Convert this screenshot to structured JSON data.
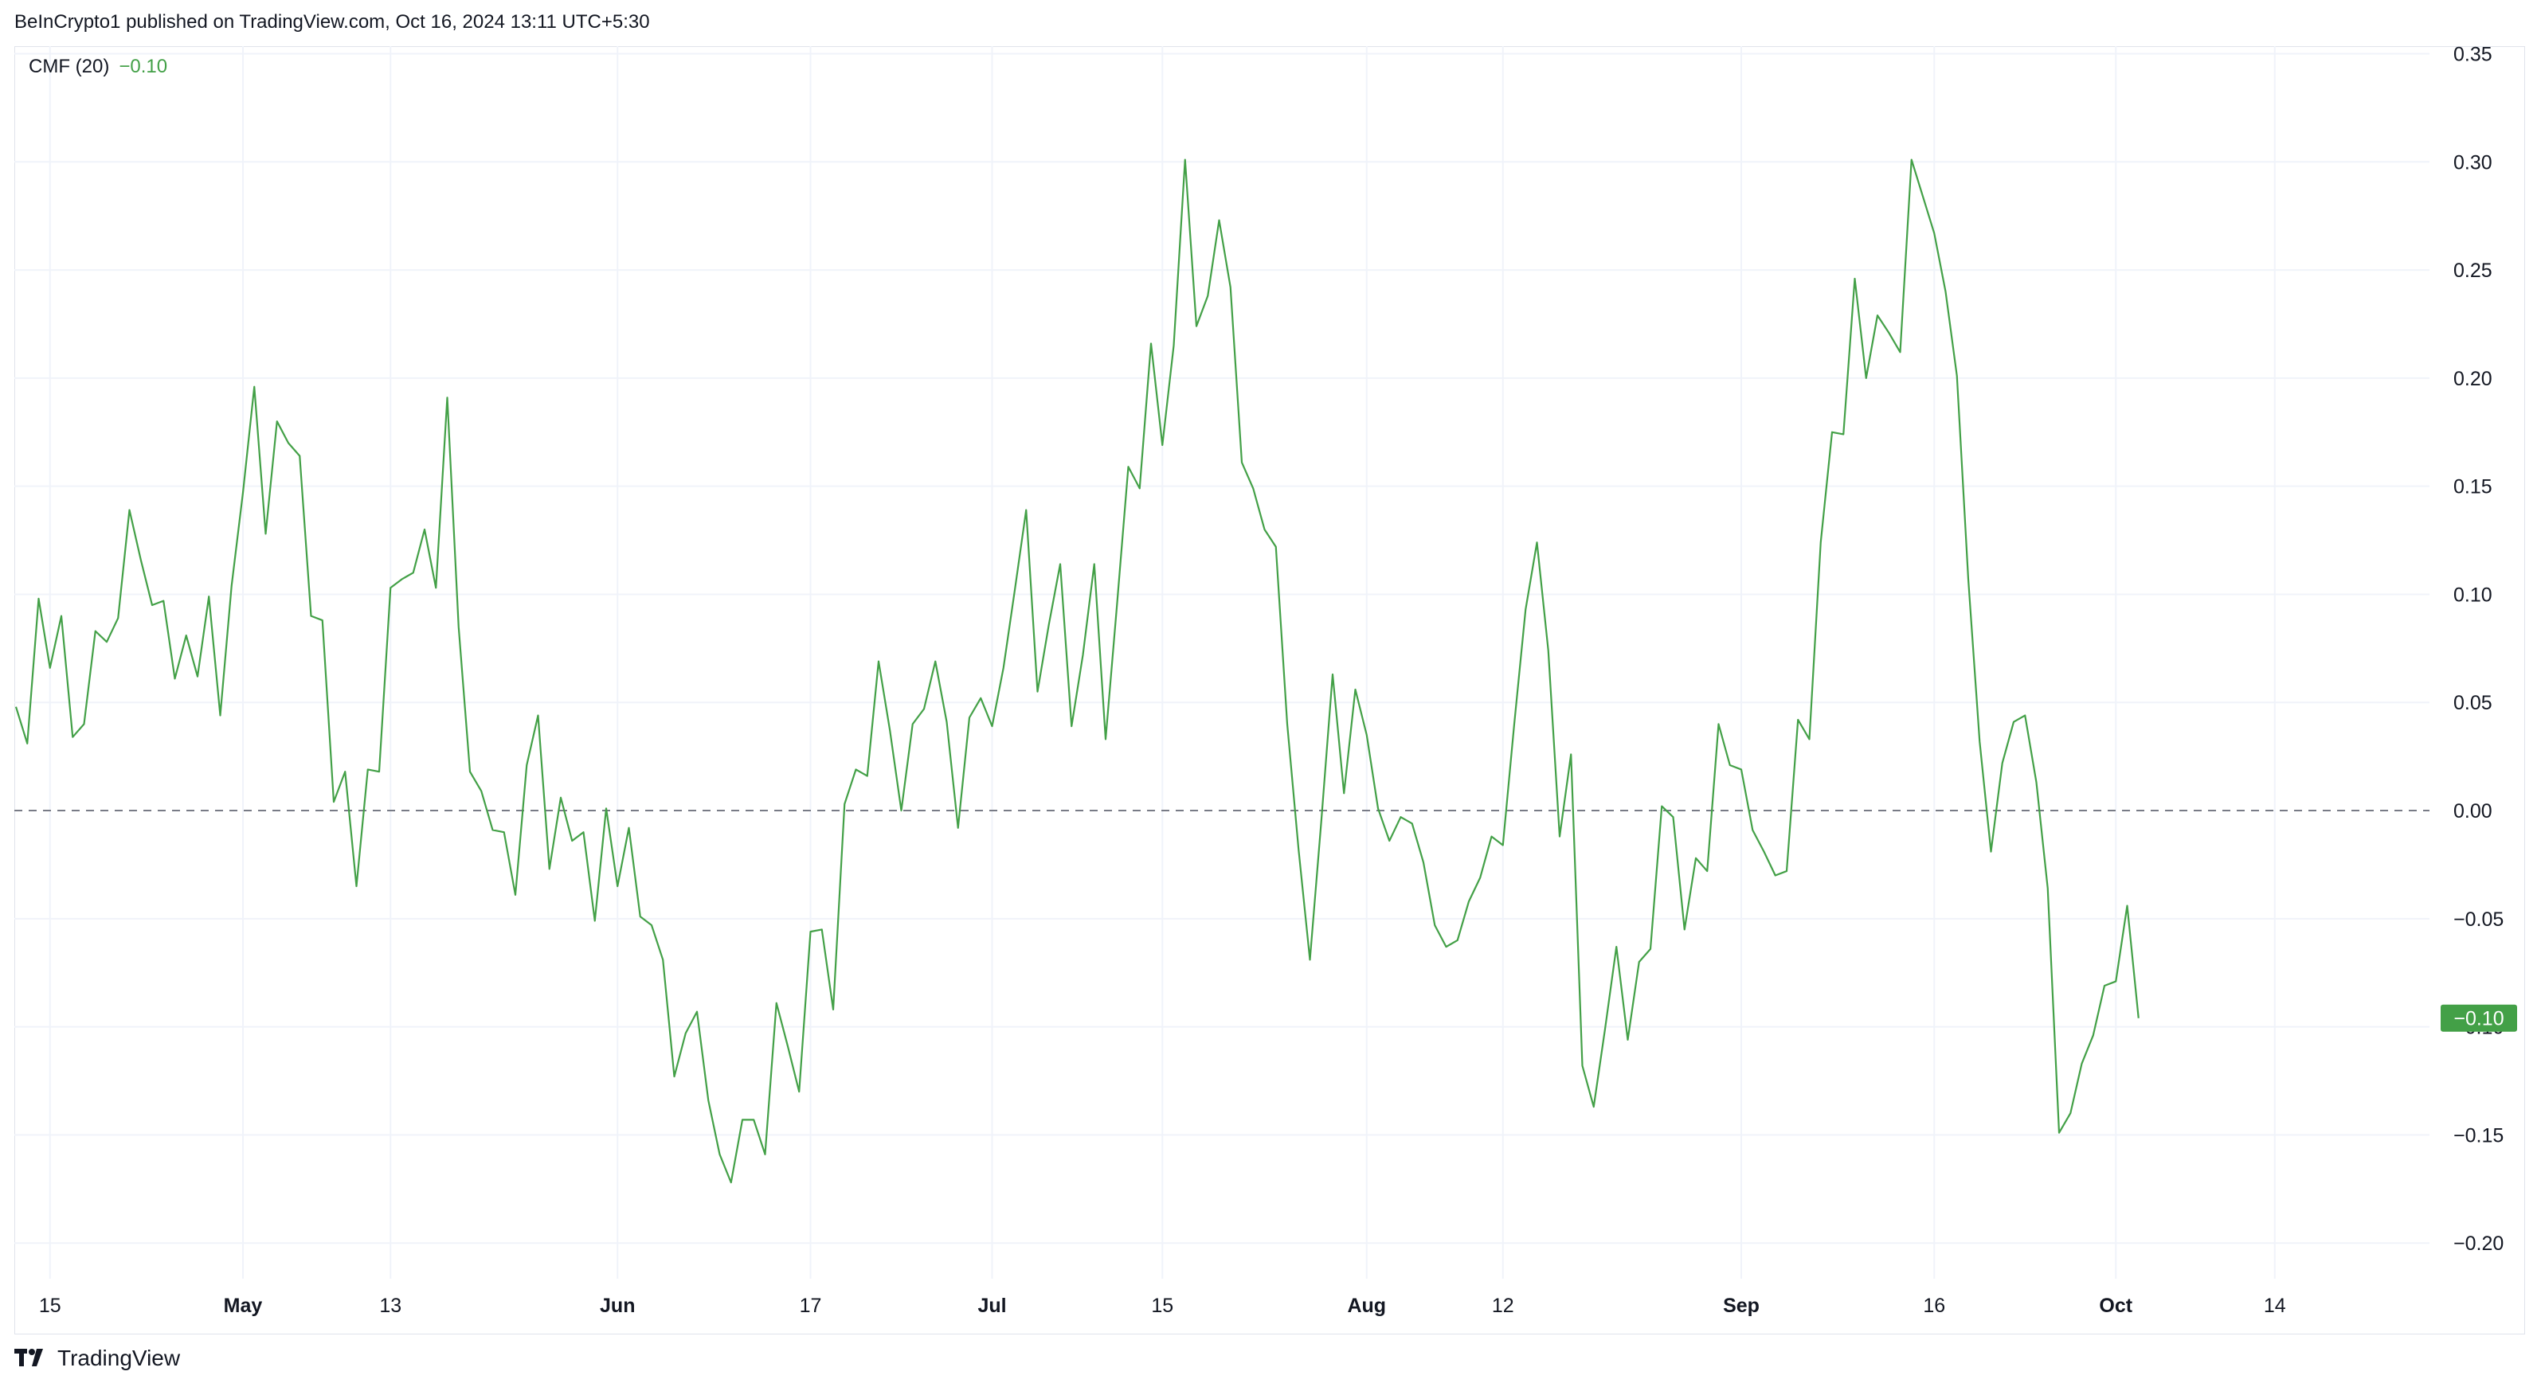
{
  "header": {
    "published_text": "BeInCrypto1 published on TradingView.com, Oct 16, 2024 13:11 UTC+5:30"
  },
  "legend": {
    "indicator": "CMF (20)",
    "value": "−0.10"
  },
  "footer": {
    "brand": "TradingView",
    "logo_icon": "tradingview-logo-icon"
  },
  "colors": {
    "line": "#43a047",
    "grid": "#f0f3fa",
    "zero_line": "#787b86",
    "axis_text": "#131722",
    "badge_bg": "#43a047",
    "badge_text": "#ffffff"
  },
  "chart_data": {
    "type": "line",
    "title": "",
    "series": [
      {
        "name": "CMF (20)",
        "values": [
          0.048,
          0.031,
          0.098,
          0.066,
          0.09,
          0.034,
          0.04,
          0.083,
          0.078,
          0.089,
          0.139,
          0.116,
          0.095,
          0.097,
          0.061,
          0.081,
          0.062,
          0.099,
          0.044,
          0.104,
          0.147,
          0.196,
          0.128,
          0.18,
          0.17,
          0.164,
          0.09,
          0.088,
          0.004,
          0.018,
          -0.035,
          0.019,
          0.018,
          0.103,
          0.107,
          0.11,
          0.13,
          0.103,
          0.191,
          0.085,
          0.018,
          0.009,
          -0.009,
          -0.01,
          -0.039,
          0.021,
          0.044,
          -0.027,
          0.006,
          -0.014,
          -0.01,
          -0.051,
          0.001,
          -0.035,
          -0.008,
          -0.049,
          -0.053,
          -0.069,
          -0.123,
          -0.103,
          -0.093,
          -0.134,
          -0.159,
          -0.172,
          -0.143,
          -0.143,
          -0.159,
          -0.089,
          -0.109,
          -0.13,
          -0.056,
          -0.055,
          -0.092,
          0.003,
          0.019,
          0.016,
          0.069,
          0.037,
          0.0,
          0.04,
          0.047,
          0.069,
          0.041,
          -0.008,
          0.043,
          0.052,
          0.039,
          0.066,
          0.102,
          0.139,
          0.055,
          0.086,
          0.114,
          0.039,
          0.072,
          0.114,
          0.033,
          0.095,
          0.159,
          0.149,
          0.216,
          0.169,
          0.215,
          0.301,
          0.224,
          0.238,
          0.273,
          0.242,
          0.161,
          0.149,
          0.13,
          0.122,
          0.04,
          -0.018,
          -0.069,
          -0.005,
          0.063,
          0.008,
          0.056,
          0.035,
          0.001,
          -0.014,
          -0.003,
          -0.006,
          -0.024,
          -0.053,
          -0.063,
          -0.06,
          -0.042,
          -0.031,
          -0.012,
          -0.016,
          0.04,
          0.093,
          0.124,
          0.074,
          -0.012,
          0.026,
          -0.118,
          -0.137,
          -0.101,
          -0.063,
          -0.106,
          -0.07,
          -0.064,
          0.002,
          -0.003,
          -0.055,
          -0.022,
          -0.028,
          0.04,
          0.021,
          0.019,
          -0.009,
          -0.019,
          -0.03,
          -0.028,
          0.042,
          0.033,
          0.124,
          0.175,
          0.174,
          0.246,
          0.2,
          0.229,
          0.221,
          0.212,
          0.301,
          0.284,
          0.267,
          0.24,
          0.201,
          0.107,
          0.032,
          -0.019,
          0.022,
          0.041,
          0.044,
          0.013,
          -0.036,
          -0.149,
          -0.14,
          -0.117,
          -0.104,
          -0.081,
          -0.079,
          -0.044,
          -0.096
        ]
      }
    ],
    "ylim": [
      -0.2165,
      0.3535
    ],
    "yticks": [
      0.35,
      0.3,
      0.25,
      0.2,
      0.15,
      0.1,
      0.05,
      0.0,
      -0.05,
      -0.1,
      -0.15,
      -0.2
    ],
    "ytick_labels": [
      "0.35",
      "0.30",
      "0.25",
      "0.20",
      "0.15",
      "0.10",
      "0.05",
      "0.00",
      "−0.05",
      "−0.10",
      "−0.15",
      "−0.20"
    ],
    "xticks": [
      {
        "label": "15",
        "bar": 3,
        "bold": false
      },
      {
        "label": "May",
        "bar": 20,
        "bold": true
      },
      {
        "label": "13",
        "bar": 33,
        "bold": false
      },
      {
        "label": "Jun",
        "bar": 53,
        "bold": true
      },
      {
        "label": "17",
        "bar": 70,
        "bold": false
      },
      {
        "label": "Jul",
        "bar": 86,
        "bold": true
      },
      {
        "label": "15",
        "bar": 101,
        "bold": false
      },
      {
        "label": "Aug",
        "bar": 119,
        "bold": true
      },
      {
        "label": "12",
        "bar": 131,
        "bold": false
      },
      {
        "label": "Sep",
        "bar": 152,
        "bold": true
      },
      {
        "label": "16",
        "bar": 169,
        "bold": false
      },
      {
        "label": "Oct",
        "bar": 185,
        "bold": true
      },
      {
        "label": "14",
        "bar": 199,
        "bold": false
      }
    ],
    "zero_line": 0.0,
    "last_value_label": "−0.10",
    "grid": true,
    "legend_position": "top-left"
  }
}
